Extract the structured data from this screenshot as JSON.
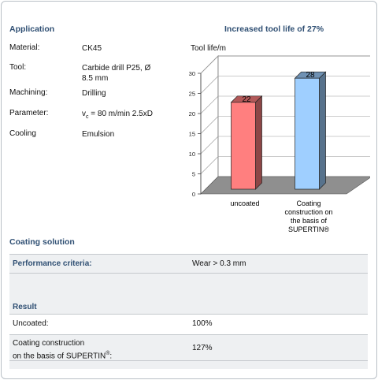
{
  "application": {
    "title": "Application",
    "rows": [
      {
        "label": "Material:",
        "value": "CK45"
      },
      {
        "label": "Tool:",
        "value": "Carbide drill P25, Ø",
        "value2": "8.5 mm"
      },
      {
        "label": "Machining:",
        "value": "Drilling"
      },
      {
        "label": "Parameter:",
        "value_prefix": "v",
        "value_sub": "c",
        "value_suffix": " = 80 m/min 2.5xD"
      },
      {
        "label": "Cooling",
        "value": "Emulsion"
      }
    ]
  },
  "chart_data": {
    "type": "bar",
    "title": "Increased tool life of 27%",
    "ylabel": "Tool life/m",
    "ylim": [
      0,
      30
    ],
    "yticks": [
      "0",
      "5",
      "10",
      "15",
      "20",
      "25",
      "30"
    ],
    "categories": [
      "uncoated",
      "Coating construction on the basis of SUPERTIN®"
    ],
    "category_lines": [
      [
        "uncoated"
      ],
      [
        "Coating",
        "construction on",
        "the basis of",
        "SUPERTIN®"
      ]
    ],
    "values": [
      22,
      28
    ],
    "data_labels": [
      "22",
      "28"
    ],
    "colors": [
      "#ff7f7f",
      "#9fcfff"
    ],
    "grid": true
  },
  "coating": {
    "title": "Coating solution",
    "criteria_label": "Performance criteria:",
    "criteria_value": "Wear > 0.3 mm",
    "result_title": "Result",
    "results": [
      {
        "label": "Uncoated:",
        "value": "100%"
      },
      {
        "label_line1": "Coating construction",
        "label_line2_prefix": "on the basis of SUPERTIN",
        "label_sup": "®",
        "label_line2_suffix": ":",
        "value": "127%"
      }
    ]
  }
}
